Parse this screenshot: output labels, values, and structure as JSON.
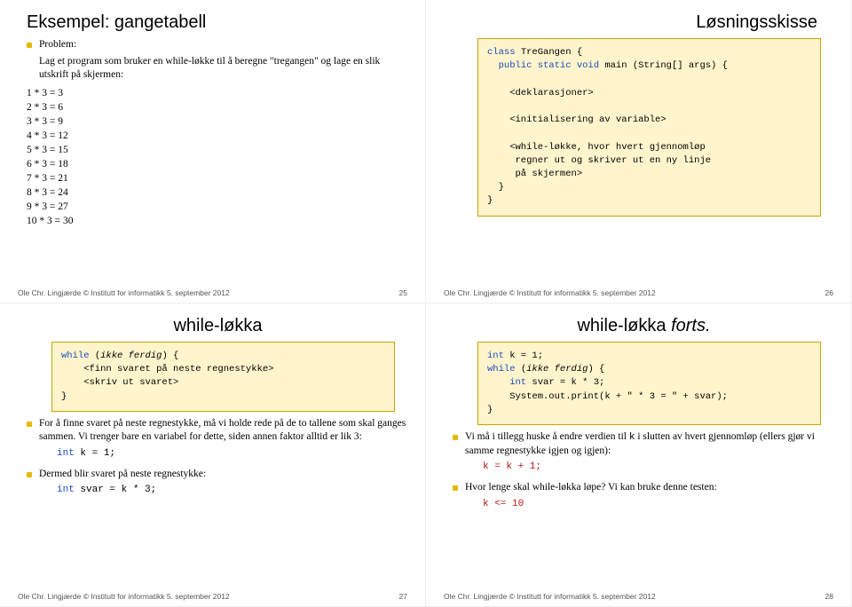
{
  "footer": {
    "credit": "Ole Chr. Lingjærde © Institutt for informatikk  5. september 2012"
  },
  "slide25": {
    "pageno": "25",
    "title": "Eksempel: gangetabell",
    "problem_head": "Problem:",
    "problem_text": "Lag et program som bruker en while-løkke til å beregne \"tregangen\" og lage en slik utskrift på skjermen:",
    "rows": [
      "1 * 3 = 3",
      "2 * 3 = 6",
      "3 * 3 = 9",
      "4 * 3 = 12",
      "5 * 3 = 15",
      "6 * 3 = 18",
      "7 * 3 = 21",
      "8 * 3 = 24",
      "9 * 3 = 27",
      "10 * 3 = 30"
    ]
  },
  "slide26": {
    "pageno": "26",
    "title": "Løsningsskisse",
    "codebox_bg": "#fff4cc",
    "codebox_border": "#c9a400",
    "code": {
      "l1a": "class",
      "l1b": " TreGangen {",
      "l2a": "  public static void",
      "l2b": " main (String[] args) {",
      "l3": "",
      "l4": "    <deklarasjoner>",
      "l5": "",
      "l6": "    <initialisering av variable>",
      "l7": "",
      "l8": "    <while-løkke, hvor hvert gjennomløp",
      "l9": "     regner ut og skriver ut en ny linje",
      "l10": "     på skjermen>",
      "l11": "  }",
      "l12": "}"
    }
  },
  "slide27": {
    "pageno": "27",
    "title": "while-løkka",
    "code": {
      "l1a": "while",
      "l1b": " (",
      "l1c": "ikke ferdig",
      "l1d": ") {",
      "l2": "    <finn svaret på neste regnestykke>",
      "l3": "    <skriv ut svaret>",
      "l4": "}"
    },
    "b1": "For å finne svaret på neste regnestykke, må vi holde rede på de to tallene som skal ganges sammen. Vi trenger bare en variabel for dette, siden annen faktor alltid er lik 3:",
    "c1a": "int",
    "c1b": " k = 1;",
    "b2": "Dermed blir svaret på neste regnestykke:",
    "c2a": "int",
    "c2b": " svar = k * 3;"
  },
  "slide28": {
    "pageno": "28",
    "title": "while-løkka ",
    "title_em": "forts.",
    "code": {
      "l1a": "int",
      "l1b": " k = 1;",
      "l2a": "while",
      "l2b": " (",
      "l2c": "ikke ferdig",
      "l2d": ") {",
      "l3a": "    int",
      "l3b": " svar = k * 3;",
      "l4": "    System.out.print(k + \" * 3 = \" + svar);",
      "l5": "}"
    },
    "b1a": "Vi må i tillegg huske å endre verdien til ",
    "b1b": "k",
    "b1c": " i slutten av hvert gjennomløp (ellers gjør vi samme regnestykke igjen og igjen):",
    "c1": "k = k + 1;",
    "b2": "Hvor lenge skal while-løkka løpe? Vi kan bruke denne testen:",
    "c2": "k <= 10"
  }
}
